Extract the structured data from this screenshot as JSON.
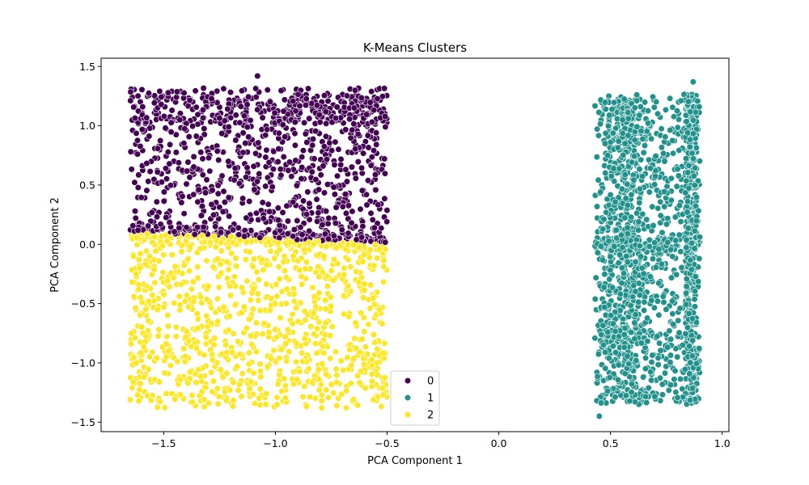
{
  "chart_data": {
    "type": "scatter",
    "title": "K-Means Clusters",
    "xlabel": "PCA Component 1",
    "ylabel": "PCA Component 2",
    "xlim": [
      -1.78,
      1.03
    ],
    "ylim": [
      -1.58,
      1.57
    ],
    "xticks": [
      -1.5,
      -1.0,
      -0.5,
      0.0,
      0.5,
      1.0
    ],
    "xtick_labels": [
      "−1.5",
      "−1.0",
      "−0.5",
      "0.0",
      "0.5",
      "1.0"
    ],
    "yticks": [
      -1.5,
      -1.0,
      -0.5,
      0.0,
      0.5,
      1.0,
      1.5
    ],
    "ytick_labels": [
      "−1.5",
      "−1.0",
      "−0.5",
      "0.0",
      "0.5",
      "1.0",
      "1.5"
    ],
    "grid": false,
    "legend": {
      "placement": "lower-center",
      "entries": [
        "0",
        "1",
        "2"
      ]
    },
    "series": [
      {
        "name": "0",
        "color": "#440154",
        "x_range": [
          -1.65,
          -0.5
        ],
        "y_range": [
          0.0,
          1.42
        ],
        "approx_points": 1100
      },
      {
        "name": "1",
        "color": "#21918c",
        "x_range": [
          0.43,
          0.9
        ],
        "y_range": [
          -1.45,
          1.37
        ],
        "approx_points": 1900
      },
      {
        "name": "2",
        "color": "#fde725",
        "x_range": [
          -1.65,
          -0.5
        ],
        "y_range": [
          -1.41,
          0.18
        ],
        "approx_points": 1150
      }
    ]
  }
}
